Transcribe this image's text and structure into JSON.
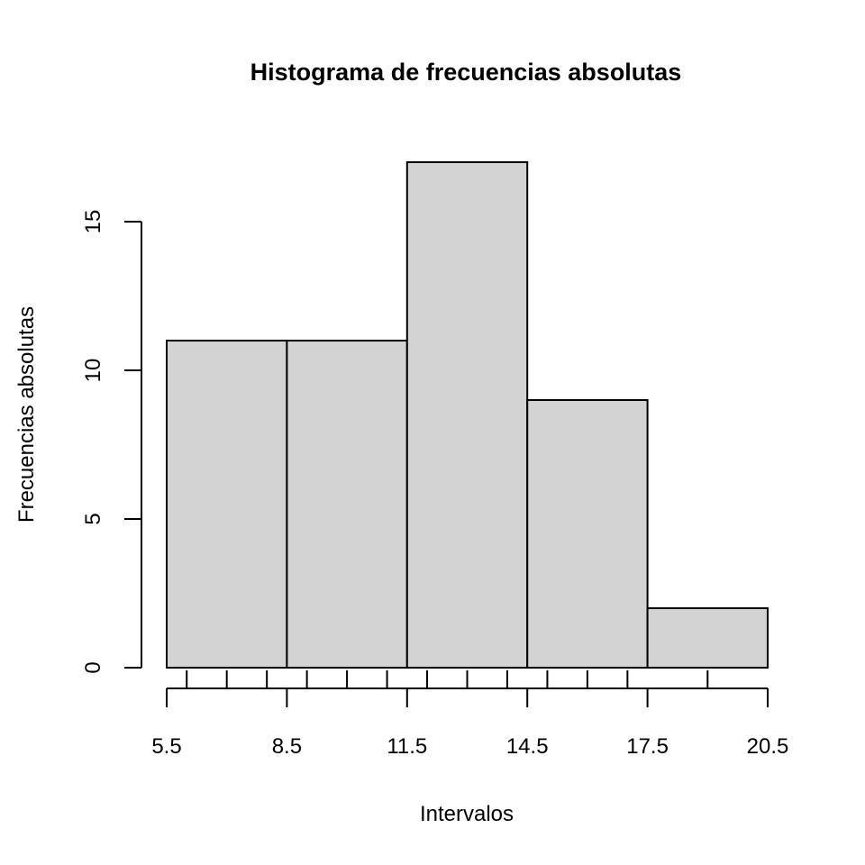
{
  "chart_data": {
    "type": "bar",
    "title": "Histograma de frecuencias absolutas",
    "xlabel": "Intervalos",
    "ylabel": "Frecuencias absolutas",
    "categories": [
      "5.5-8.5",
      "8.5-11.5",
      "11.5-14.5",
      "14.5-17.5",
      "17.5-20.5"
    ],
    "bin_edges": [
      5.5,
      8.5,
      11.5,
      14.5,
      17.5,
      20.5
    ],
    "values": [
      11,
      11,
      17,
      9,
      2
    ],
    "x_tick_labels": [
      "5.5",
      "8.5",
      "11.5",
      "14.5",
      "17.5",
      "20.5"
    ],
    "y_ticks": [
      0,
      5,
      10,
      15
    ],
    "y_tick_labels": [
      "0",
      "5",
      "10",
      "15"
    ],
    "x_minor_ticks": [
      6,
      7,
      8,
      9,
      10,
      11,
      12,
      13,
      14,
      15,
      16,
      17,
      19
    ],
    "xlim": [
      5.5,
      20.5
    ],
    "ylim": [
      0,
      17
    ],
    "grid": false,
    "bar_color": "#d3d3d3",
    "edge_color": "#000000"
  }
}
